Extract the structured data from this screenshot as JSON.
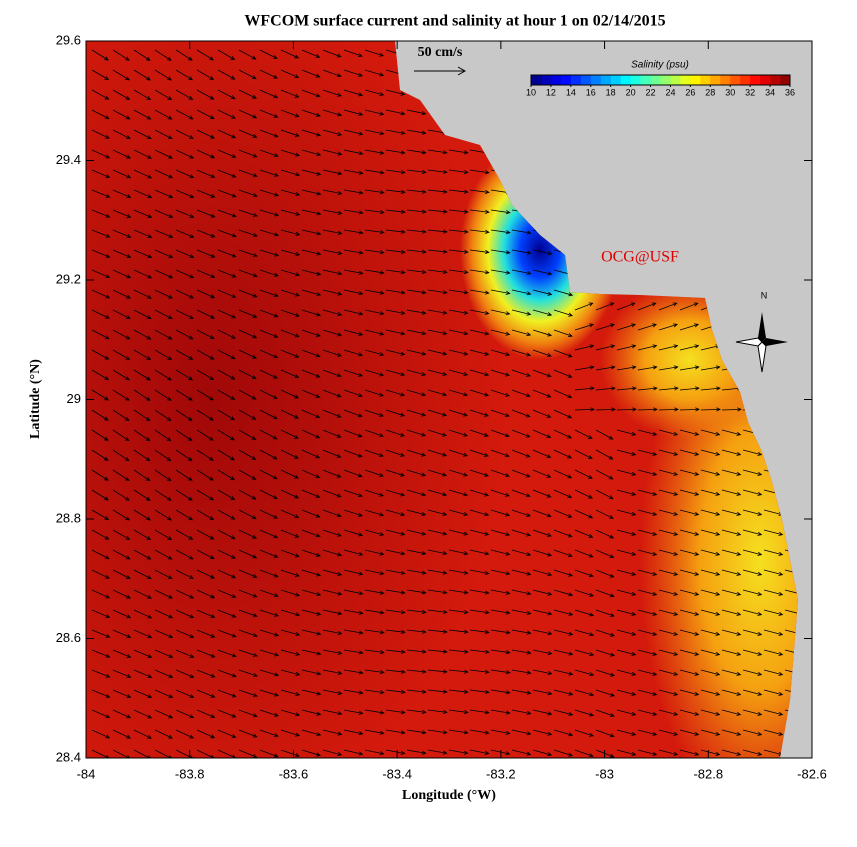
{
  "chart_data": {
    "type": "map",
    "title": "WFCOM surface current and salinity at hour 1 on 02/14/2015",
    "x_label": "Longitude (°W)",
    "y_label": "Latitude (°N)",
    "xlim": [
      -84,
      -82.6
    ],
    "xticks": [
      -84,
      -83.8,
      -83.6,
      -83.4,
      -83.2,
      -83,
      -82.8,
      -82.6
    ],
    "ylim": [
      28.4,
      29.6
    ],
    "yticks": [
      28.4,
      28.6,
      28.8,
      29,
      29.2,
      29.4,
      29.6
    ],
    "scale_label": "50 cm/s",
    "colorbar": {
      "title": "Salinity (psu)",
      "range": [
        10,
        36
      ],
      "ticks": [
        10,
        12,
        14,
        16,
        18,
        20,
        22,
        24,
        26,
        28,
        30,
        32,
        34,
        36
      ]
    },
    "credit": "OCG@USF",
    "compass": "N"
  }
}
